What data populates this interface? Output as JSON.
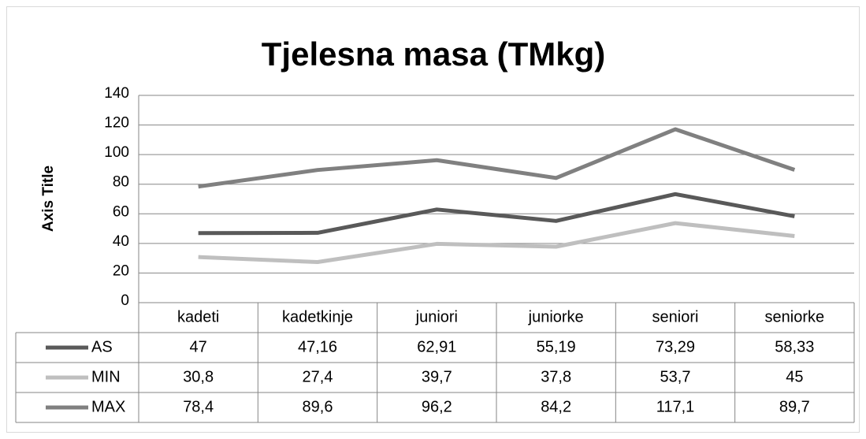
{
  "chart_data": {
    "type": "line",
    "title": "Tjelesna masa (TMkg)",
    "y_label": "Axis Title",
    "categories": [
      "kadeti",
      "kadetkinje",
      "juniori",
      "juniorke",
      "seniori",
      "seniorke"
    ],
    "series": [
      {
        "name": "AS",
        "color": "#595959",
        "values": [
          47,
          47.16,
          62.91,
          55.19,
          73.29,
          58.33
        ],
        "value_labels": [
          "47",
          "47,16",
          "62,91",
          "55,19",
          "73,29",
          "58,33"
        ]
      },
      {
        "name": "MIN",
        "color": "#bfbfbf",
        "values": [
          30.8,
          27.4,
          39.7,
          37.8,
          53.7,
          45
        ],
        "value_labels": [
          "30,8",
          "27,4",
          "39,7",
          "37,8",
          "53,7",
          "45"
        ]
      },
      {
        "name": "MAX",
        "color": "#808080",
        "values": [
          78.4,
          89.6,
          96.2,
          84.2,
          117.1,
          89.7
        ],
        "value_labels": [
          "78,4",
          "89,6",
          "96,2",
          "84,2",
          "117,1",
          "89,7"
        ]
      }
    ],
    "ylim": [
      0,
      140
    ],
    "yticks": [
      0,
      20,
      40,
      60,
      80,
      100,
      120,
      140
    ],
    "grid": true
  }
}
